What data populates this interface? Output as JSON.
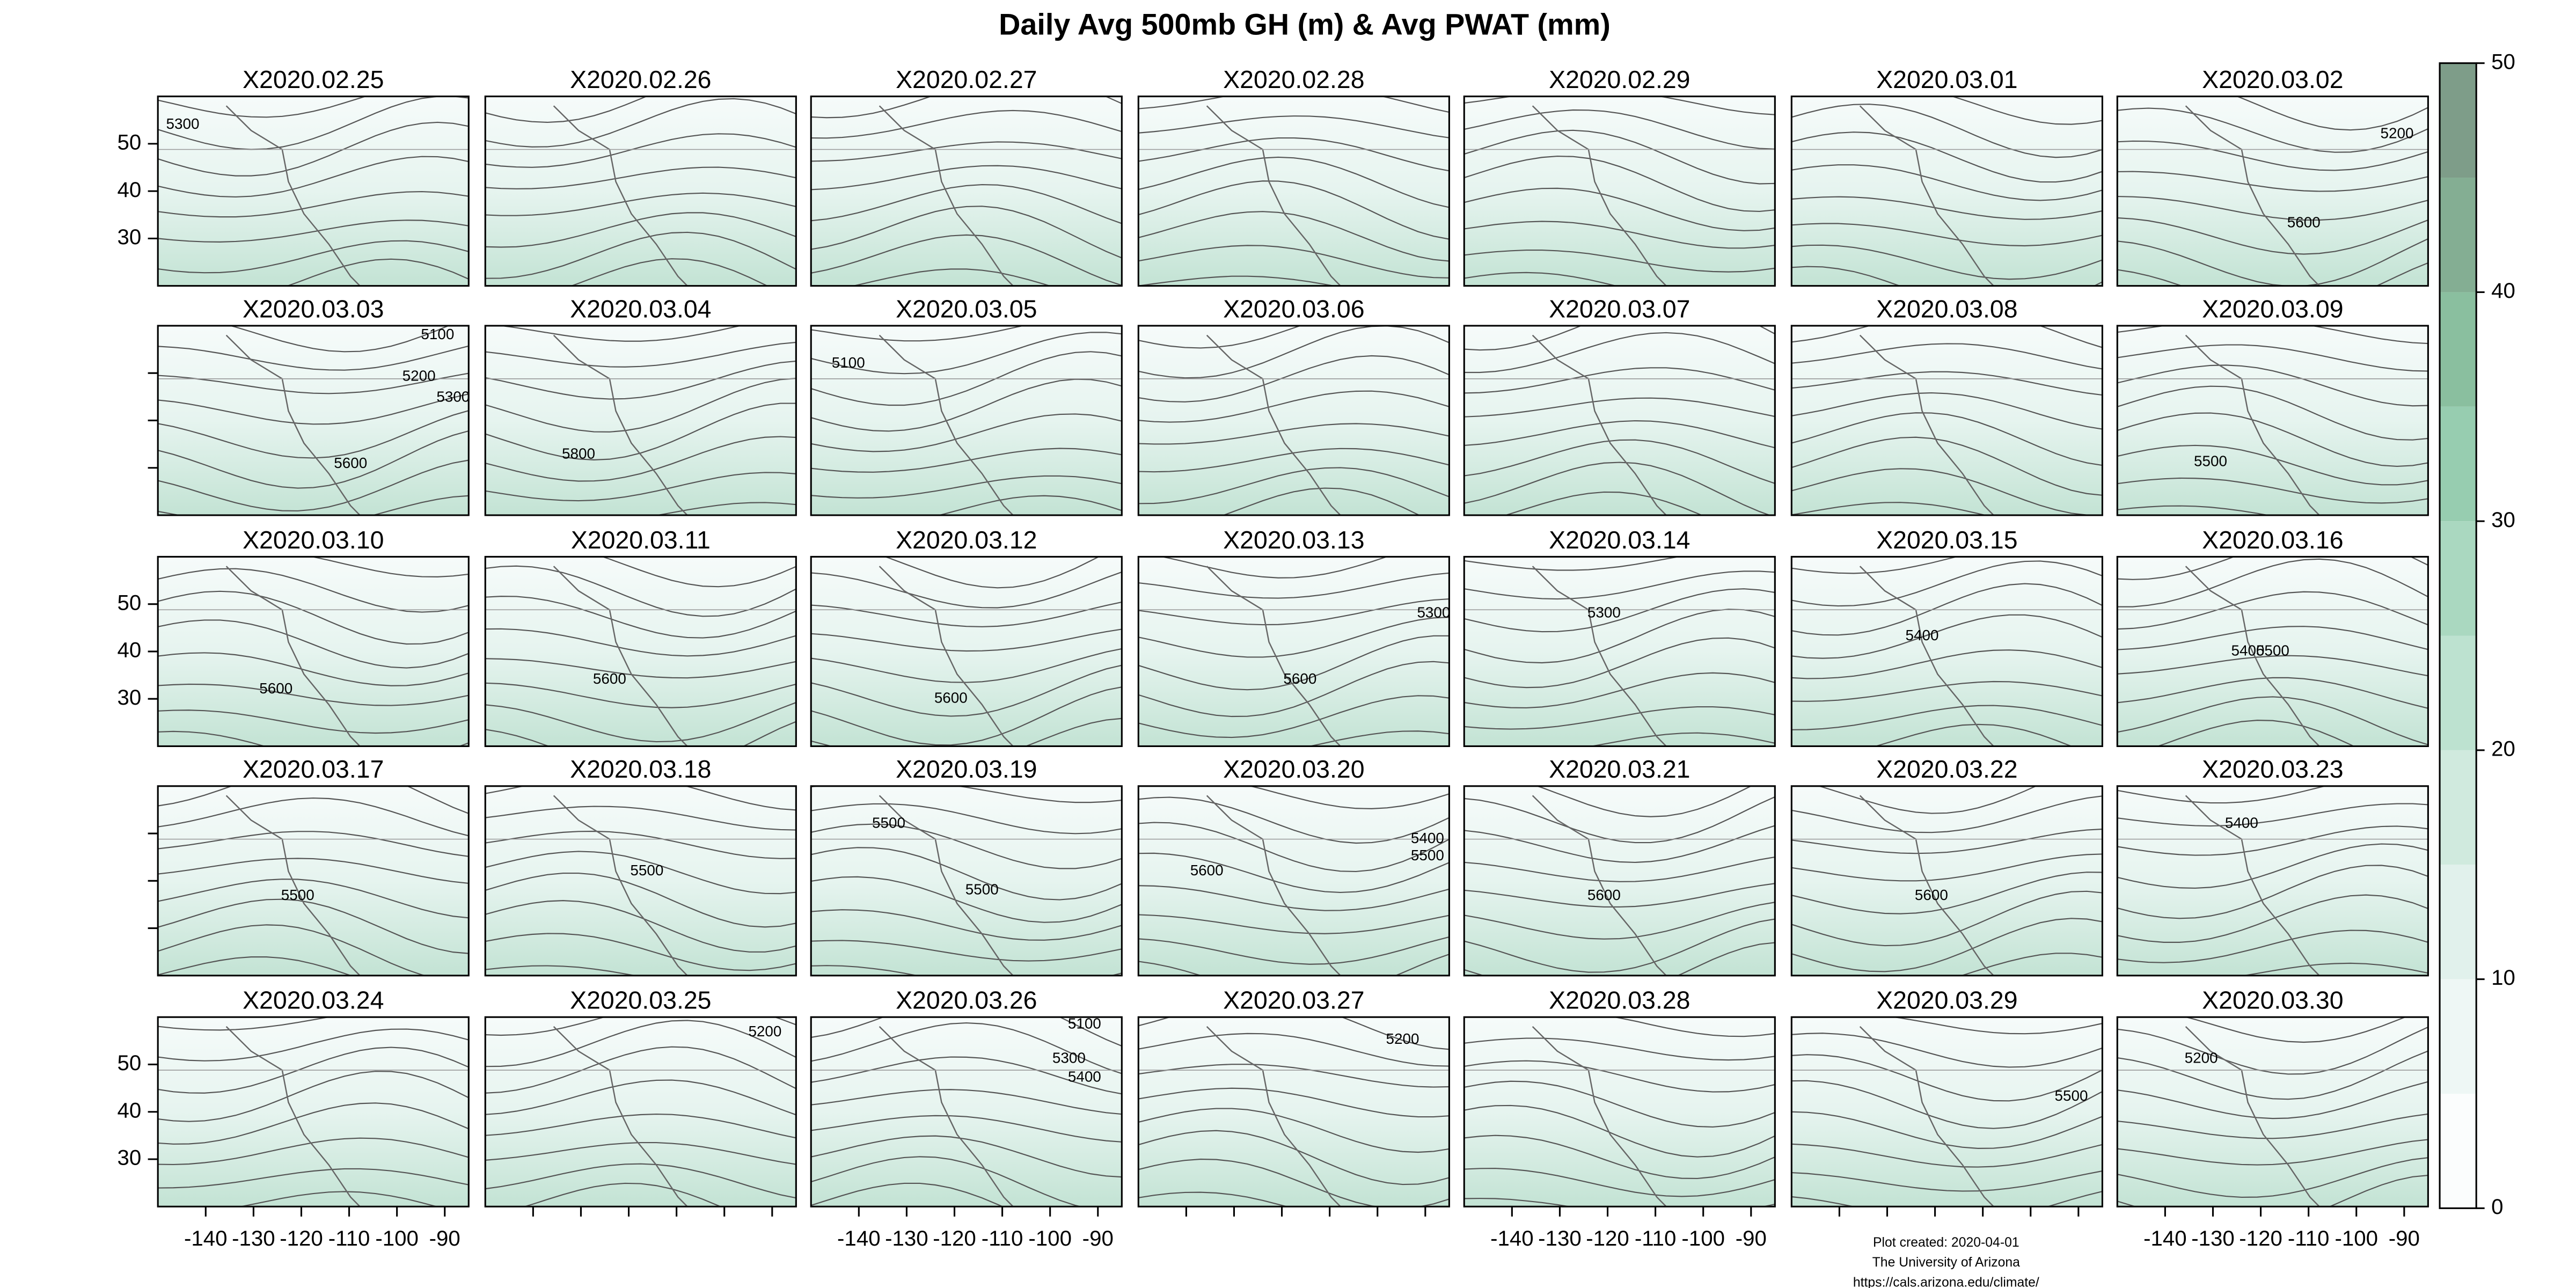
{
  "chart_data": {
    "type": "map_panels",
    "title": "Daily Avg 500mb GH (m) & Avg PWAT (mm)",
    "xlim": [
      -150,
      -85
    ],
    "ylim": [
      20,
      60
    ],
    "xticks": [
      -140,
      -130,
      -120,
      -110,
      -100,
      -90
    ],
    "yticks": [
      30,
      40,
      50
    ],
    "panels": [
      {
        "title": "X2020.02.25",
        "contour_labels": [
          5300
        ]
      },
      {
        "title": "X2020.02.26",
        "contour_labels": []
      },
      {
        "title": "X2020.02.27",
        "contour_labels": []
      },
      {
        "title": "X2020.02.28",
        "contour_labels": []
      },
      {
        "title": "X2020.02.29",
        "contour_labels": []
      },
      {
        "title": "X2020.03.01",
        "contour_labels": []
      },
      {
        "title": "X2020.03.02",
        "contour_labels": [
          5200,
          5600
        ]
      },
      {
        "title": "X2020.03.03",
        "contour_labels": [
          5100,
          5200,
          5300,
          5600
        ]
      },
      {
        "title": "X2020.03.04",
        "contour_labels": [
          5800
        ]
      },
      {
        "title": "X2020.03.05",
        "contour_labels": [
          5100
        ]
      },
      {
        "title": "X2020.03.06",
        "contour_labels": []
      },
      {
        "title": "X2020.03.07",
        "contour_labels": []
      },
      {
        "title": "X2020.03.08",
        "contour_labels": []
      },
      {
        "title": "X2020.03.09",
        "contour_labels": [
          5500
        ]
      },
      {
        "title": "X2020.03.10",
        "contour_labels": [
          5600
        ]
      },
      {
        "title": "X2020.03.11",
        "contour_labels": [
          5600
        ]
      },
      {
        "title": "X2020.03.12",
        "contour_labels": [
          5600
        ]
      },
      {
        "title": "X2020.03.13",
        "contour_labels": [
          5600,
          5300
        ]
      },
      {
        "title": "X2020.03.14",
        "contour_labels": [
          5300
        ]
      },
      {
        "title": "X2020.03.15",
        "contour_labels": [
          5400
        ]
      },
      {
        "title": "X2020.03.16",
        "contour_labels": [
          5400,
          5500
        ]
      },
      {
        "title": "X2020.03.17",
        "contour_labels": [
          5500
        ]
      },
      {
        "title": "X2020.03.18",
        "contour_labels": [
          5500
        ]
      },
      {
        "title": "X2020.03.19",
        "contour_labels": [
          5500,
          5500
        ]
      },
      {
        "title": "X2020.03.20",
        "contour_labels": [
          5600,
          5400,
          5500
        ]
      },
      {
        "title": "X2020.03.21",
        "contour_labels": [
          5600
        ]
      },
      {
        "title": "X2020.03.22",
        "contour_labels": [
          5600
        ]
      },
      {
        "title": "X2020.03.23",
        "contour_labels": [
          5400
        ]
      },
      {
        "title": "X2020.03.24",
        "contour_labels": []
      },
      {
        "title": "X2020.03.25",
        "contour_labels": [
          5200
        ]
      },
      {
        "title": "X2020.03.26",
        "contour_labels": [
          5100,
          5300,
          5400
        ]
      },
      {
        "title": "X2020.03.27",
        "contour_labels": [
          5200
        ]
      },
      {
        "title": "X2020.03.28",
        "contour_labels": []
      },
      {
        "title": "X2020.03.29",
        "contour_labels": [
          5500
        ]
      },
      {
        "title": "X2020.03.30",
        "contour_labels": [
          5200
        ]
      }
    ],
    "colorbar": {
      "lim": [
        0,
        50
      ],
      "ticks": [
        0,
        10,
        20,
        30,
        40,
        50
      ],
      "colors": [
        "#fbfdfd",
        "#eef7f5",
        "#e1f1ec",
        "#d0eade",
        "#bde2d0",
        "#aad8c0",
        "#97cdb0",
        "#8abf9f",
        "#84ae93",
        "#7e9d89"
      ]
    },
    "caption": [
      "Plot created: 2020-04-01",
      "The University of Arizona",
      "https://cals.arizona.edu/climate/"
    ]
  }
}
